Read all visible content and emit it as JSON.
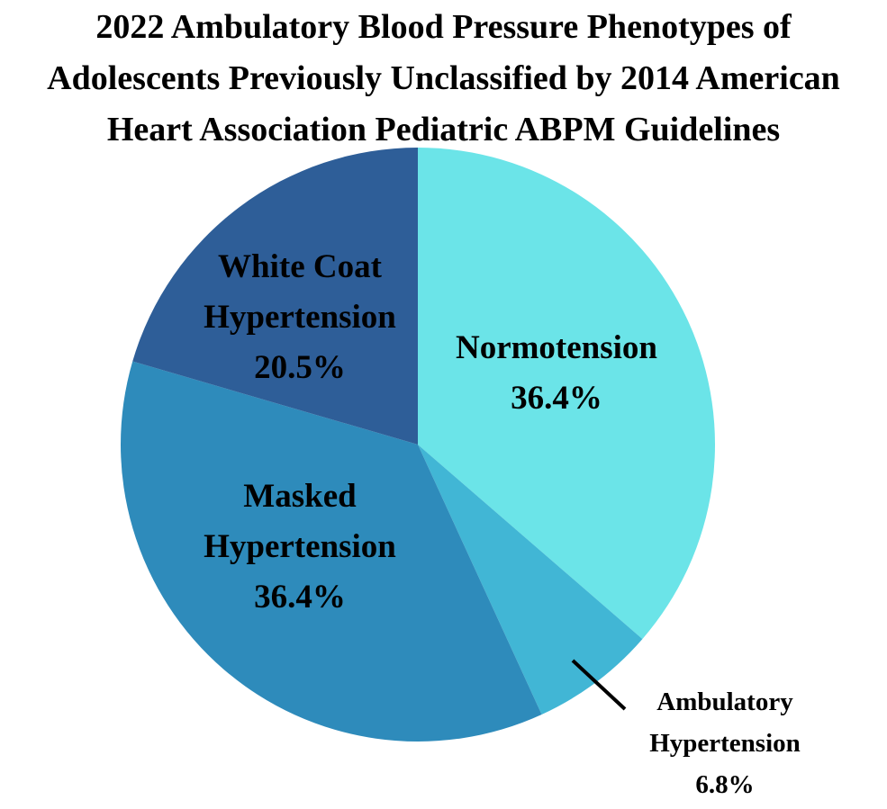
{
  "chart_data": {
    "type": "pie",
    "title_lines": [
      "2022 Ambulatory Blood Pressure Phenotypes of",
      "Adolescents Previously Unclassified by 2014 American",
      "Heart Association Pediatric ABPM Guidelines"
    ],
    "slices": [
      {
        "label_lines": [
          "Normotension"
        ],
        "value": 36.4,
        "value_label": "36.4%",
        "color": "#6be4e8"
      },
      {
        "label_lines": [
          "Ambulatory",
          "Hypertension"
        ],
        "value": 6.8,
        "value_label": "6.8%",
        "color": "#41b6d5"
      },
      {
        "label_lines": [
          "Masked",
          "Hypertension"
        ],
        "value": 36.4,
        "value_label": "36.4%",
        "color": "#2e8bbb"
      },
      {
        "label_lines": [
          "White Coat",
          "Hypertension"
        ],
        "value": 20.5,
        "value_label": "20.5%",
        "color": "#2e5e98"
      }
    ],
    "start_angle": "12 o'clock",
    "direction": "clockwise",
    "legend": "none"
  }
}
